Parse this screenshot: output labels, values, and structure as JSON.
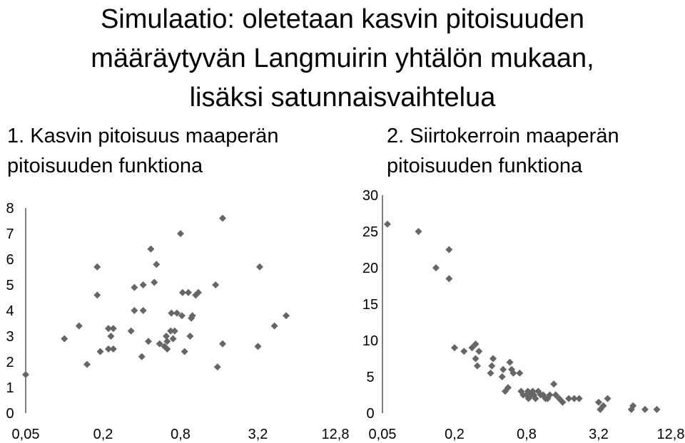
{
  "title": {
    "lines": [
      "Simulaatio: oletetaan kasvin pitoisuuden",
      "määräytyvän Langmuirin yhtälön mukaan,",
      "lisäksi satunnaisvaihtelua"
    ]
  },
  "colors": {
    "marker": "#666666",
    "axis": "#000000"
  },
  "chart_data": [
    {
      "type": "scatter",
      "title": "1. Kasvin pitoisuus maaperän pitoisuuden funktiona",
      "title_lines": [
        "1. Kasvin pitoisuus maaperän",
        "pitoisuuden funktiona"
      ],
      "xlabel": "",
      "ylabel": "",
      "x_scale": "log2",
      "x_ticks": [
        "0,05",
        "0,2",
        "0,8",
        "3,2",
        "12,8"
      ],
      "x_tick_values": [
        0.05,
        0.2,
        0.8,
        3.2,
        12.8
      ],
      "xlim": [
        0.05,
        12.8
      ],
      "y_ticks": [
        "0",
        "1",
        "2",
        "3",
        "4",
        "5",
        "6",
        "7",
        "8"
      ],
      "ylim": [
        0,
        8
      ],
      "grid": false,
      "marker": "diamond",
      "points": [
        [
          0.05,
          1.5
        ],
        [
          0.1,
          2.9
        ],
        [
          0.13,
          3.4
        ],
        [
          0.15,
          1.9
        ],
        [
          0.18,
          4.6
        ],
        [
          0.18,
          5.7
        ],
        [
          0.19,
          2.4
        ],
        [
          0.22,
          3.3
        ],
        [
          0.22,
          2.5
        ],
        [
          0.23,
          3.0
        ],
        [
          0.24,
          2.5
        ],
        [
          0.24,
          3.3
        ],
        [
          0.33,
          3.2
        ],
        [
          0.35,
          4.0
        ],
        [
          0.35,
          4.9
        ],
        [
          0.4,
          2.2
        ],
        [
          0.41,
          4.0
        ],
        [
          0.41,
          5.0
        ],
        [
          0.45,
          2.8
        ],
        [
          0.47,
          6.4
        ],
        [
          0.5,
          5.1
        ],
        [
          0.52,
          5.8
        ],
        [
          0.55,
          2.7
        ],
        [
          0.6,
          2.6
        ],
        [
          0.62,
          3.0
        ],
        [
          0.63,
          2.8
        ],
        [
          0.63,
          2.5
        ],
        [
          0.67,
          3.2
        ],
        [
          0.68,
          3.9
        ],
        [
          0.7,
          2.9
        ],
        [
          0.72,
          3.2
        ],
        [
          0.75,
          3.9
        ],
        [
          0.8,
          7.0
        ],
        [
          0.82,
          3.8
        ],
        [
          0.83,
          4.7
        ],
        [
          0.86,
          2.4
        ],
        [
          0.92,
          4.7
        ],
        [
          0.95,
          3.0
        ],
        [
          0.97,
          3.7
        ],
        [
          0.99,
          3.8
        ],
        [
          1.05,
          4.6
        ],
        [
          1.1,
          4.7
        ],
        [
          1.5,
          5.0
        ],
        [
          1.55,
          1.8
        ],
        [
          1.7,
          7.6
        ],
        [
          1.7,
          2.7
        ],
        [
          3.2,
          2.6
        ],
        [
          3.3,
          5.7
        ],
        [
          4.3,
          3.4
        ],
        [
          5.3,
          3.8
        ]
      ]
    },
    {
      "type": "scatter",
      "title": "2. Siirtokerroin maaperän pitoisuuden funktiona",
      "title_lines": [
        "2. Siirtokerroin maaperän",
        "pitoisuuden funktiona"
      ],
      "xlabel": "",
      "ylabel": "",
      "x_scale": "log2",
      "x_ticks": [
        "0,05",
        "0,2",
        "0,8",
        "3,2",
        "12,8"
      ],
      "x_tick_values": [
        0.05,
        0.2,
        0.8,
        3.2,
        12.8
      ],
      "xlim": [
        0.05,
        12.8
      ],
      "y_ticks": [
        "0",
        "5",
        "10",
        "15",
        "20",
        "25",
        "30"
      ],
      "ylim": [
        0,
        30
      ],
      "grid": false,
      "marker": "diamond",
      "points": [
        [
          0.055,
          26.0
        ],
        [
          0.1,
          25.0
        ],
        [
          0.14,
          20.0
        ],
        [
          0.18,
          22.5
        ],
        [
          0.18,
          18.5
        ],
        [
          0.2,
          9.0
        ],
        [
          0.24,
          8.5
        ],
        [
          0.28,
          9.0
        ],
        [
          0.3,
          9.5
        ],
        [
          0.32,
          8.5
        ],
        [
          0.3,
          7.5
        ],
        [
          0.31,
          6.5
        ],
        [
          0.4,
          5.5
        ],
        [
          0.41,
          6.5
        ],
        [
          0.42,
          7.5
        ],
        [
          0.5,
          5.0
        ],
        [
          0.51,
          6.0
        ],
        [
          0.53,
          3.0
        ],
        [
          0.56,
          3.5
        ],
        [
          0.58,
          7.0
        ],
        [
          0.6,
          6.0
        ],
        [
          0.62,
          5.5
        ],
        [
          0.7,
          5.5
        ],
        [
          0.72,
          3.0
        ],
        [
          0.75,
          2.5
        ],
        [
          0.8,
          2.5
        ],
        [
          0.82,
          3.0
        ],
        [
          0.83,
          2.0
        ],
        [
          0.86,
          2.5
        ],
        [
          0.88,
          2.5
        ],
        [
          0.9,
          3.0
        ],
        [
          0.92,
          2.5
        ],
        [
          0.95,
          2.0
        ],
        [
          1.0,
          3.0
        ],
        [
          1.05,
          2.5
        ],
        [
          1.1,
          2.5
        ],
        [
          1.15,
          2.0
        ],
        [
          1.2,
          2.0
        ],
        [
          1.25,
          2.5
        ],
        [
          1.35,
          4.0
        ],
        [
          1.4,
          2.5
        ],
        [
          1.5,
          2.0
        ],
        [
          1.6,
          1.5
        ],
        [
          1.8,
          2.0
        ],
        [
          2.0,
          2.0
        ],
        [
          2.2,
          2.0
        ],
        [
          3.2,
          1.5
        ],
        [
          3.3,
          0.5
        ],
        [
          3.5,
          1.0
        ],
        [
          3.8,
          2.0
        ],
        [
          6.0,
          0.5
        ],
        [
          6.2,
          1.0
        ],
        [
          7.8,
          0.5
        ],
        [
          9.8,
          0.5
        ]
      ]
    }
  ]
}
